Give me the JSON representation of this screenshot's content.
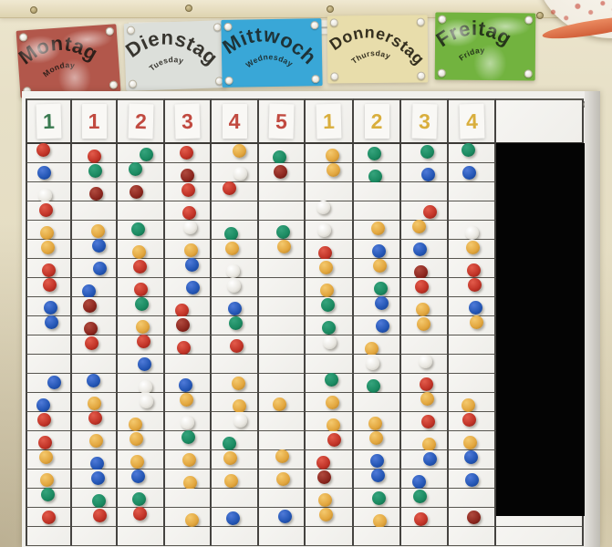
{
  "scene_description": "Classroom magnet board photo with weekday cards",
  "wall": {
    "color": "#e7e0c7"
  },
  "day_cards": [
    {
      "name_de": "Montag",
      "name_en": "Monday",
      "bg": "#b2574b",
      "ink": "#2e1f1a",
      "smudge": true
    },
    {
      "name_de": "Dienstag",
      "name_en": "Tuesday",
      "bg": "#dcdfda",
      "ink": "#37352f",
      "smudge": false
    },
    {
      "name_de": "Mittwoch",
      "name_en": "Wednesday",
      "bg": "#39a7d7",
      "ink": "#1e3338",
      "smudge": false
    },
    {
      "name_de": "Donnerstag",
      "name_en": "Thursday",
      "bg": "#e8ddab",
      "ink": "#35301f",
      "smudge": false
    },
    {
      "name_de": "Freitag",
      "name_en": "Friday",
      "bg": "#72b33f",
      "ink": "#25351a",
      "smudge": true
    }
  ],
  "board": {
    "background": "#f2f1ee",
    "line_color": "#454340",
    "header_tags": [
      {
        "label": "1",
        "color": "#3a7a50"
      },
      {
        "label": "1",
        "color": "#c14a40"
      },
      {
        "label": "2",
        "color": "#c14a40"
      },
      {
        "label": "3",
        "color": "#c14a40"
      },
      {
        "label": "4",
        "color": "#c14a40"
      },
      {
        "label": "5",
        "color": "#c14a40"
      },
      {
        "label": "1",
        "color": "#d9ae3c"
      },
      {
        "label": "2",
        "color": "#d9ae3c"
      },
      {
        "label": "3",
        "color": "#d9ae3c"
      },
      {
        "label": "4",
        "color": "#d9ae3c"
      }
    ],
    "magnet_palette": {
      "red": {
        "light": "#e25b4b",
        "base": "#c13327",
        "dark": "#7e1d14"
      },
      "darkred": {
        "light": "#b04a3e",
        "base": "#8c271f",
        "dark": "#561009"
      },
      "blue": {
        "light": "#4f7ad8",
        "base": "#2456b5",
        "dark": "#143a82"
      },
      "green": {
        "light": "#35a37c",
        "base": "#1b8a61",
        "dark": "#0e5a3e"
      },
      "yellow": {
        "light": "#f4c96e",
        "base": "#e2a63e",
        "dark": "#a87620"
      },
      "white": {
        "light": "#ffffff",
        "base": "#eae8e2",
        "dark": "#bdbab0"
      }
    },
    "magnet_rows": [
      [
        "red",
        "red",
        "green",
        "red",
        "yellow",
        "green",
        "yellow",
        "green",
        "green",
        "green"
      ],
      [
        "blue",
        "green",
        "green",
        "darkred",
        "white",
        "darkred",
        "yellow",
        "green",
        "blue",
        "blue"
      ],
      [
        "white",
        "darkred",
        "darkred",
        "red",
        "red",
        null,
        null,
        null,
        null,
        null
      ],
      [
        "red",
        null,
        null,
        "red",
        null,
        null,
        "white",
        null,
        "red",
        null
      ],
      [
        "yellow",
        "yellow",
        "green",
        "white",
        "green",
        "green",
        "white",
        "yellow",
        "yellow",
        "white"
      ],
      [
        "yellow",
        "blue",
        "yellow",
        "yellow",
        "yellow",
        "yellow",
        "red",
        "blue",
        "blue",
        "yellow"
      ],
      [
        "red",
        "blue",
        "red",
        "blue",
        "white",
        null,
        "yellow",
        "yellow",
        "darkred",
        "red"
      ],
      [
        "red",
        "blue",
        "red",
        "blue",
        "white",
        null,
        "yellow",
        "green",
        "red",
        "red"
      ],
      [
        "blue",
        "darkred",
        "green",
        "red",
        "blue",
        null,
        "green",
        "blue",
        "yellow",
        "blue"
      ],
      [
        "blue",
        "darkred",
        "yellow",
        "darkred",
        "green",
        null,
        "green",
        "blue",
        "yellow",
        "yellow"
      ],
      [
        null,
        "red",
        "red",
        "red",
        "red",
        null,
        "white",
        "yellow",
        null,
        null
      ],
      [
        null,
        null,
        "blue",
        null,
        null,
        null,
        null,
        "white",
        "white",
        null
      ],
      [
        "blue",
        "blue",
        "white",
        "blue",
        "yellow",
        null,
        "green",
        "green",
        "red",
        null
      ],
      [
        "blue",
        "yellow",
        "white",
        "yellow",
        "yellow",
        "yellow",
        "yellow",
        null,
        "yellow",
        "yellow"
      ],
      [
        "red",
        "red",
        "yellow",
        "white",
        "white",
        null,
        "yellow",
        "yellow",
        "red",
        "red"
      ],
      [
        "red",
        "yellow",
        "yellow",
        "green",
        "green",
        null,
        "red",
        "yellow",
        "yellow",
        "yellow"
      ],
      [
        "yellow",
        "blue",
        "yellow",
        "yellow",
        "yellow",
        "yellow",
        "red",
        "blue",
        "blue",
        "blue"
      ],
      [
        "yellow",
        "blue",
        "blue",
        "yellow",
        "yellow",
        "yellow",
        "darkred",
        "blue",
        "blue",
        "blue"
      ],
      [
        "green",
        "green",
        "green",
        null,
        null,
        null,
        "yellow",
        "green",
        "green",
        null
      ],
      [
        "red",
        "red",
        "red",
        "yellow",
        "blue",
        "blue",
        "yellow",
        "yellow",
        "red",
        "darkred"
      ],
      [
        null,
        null,
        null,
        null,
        null,
        null,
        null,
        null,
        null,
        null
      ]
    ],
    "redaction": {
      "color": "#040404"
    }
  }
}
